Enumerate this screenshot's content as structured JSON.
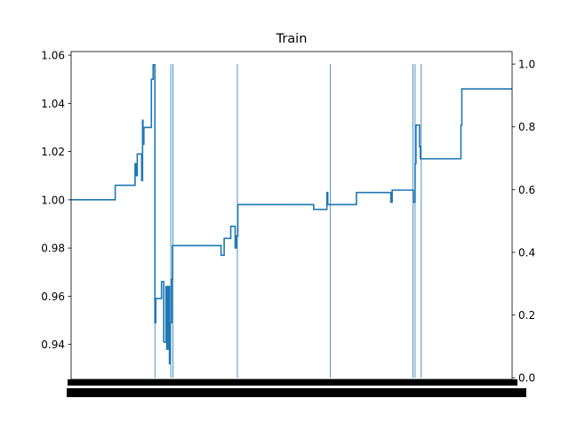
{
  "chart_data": {
    "type": "line",
    "title": "Train",
    "xlabel": "",
    "ylabel": "",
    "line_color": "#1f77b4",
    "grid": false,
    "legend": "none",
    "x_tick_labels_overlapping": true,
    "xlim": [
      0,
      1000
    ],
    "ylim_left": [
      0.9255,
      1.0615
    ],
    "ylim_right": [
      -0.005,
      1.04
    ],
    "y_ticks_left": [
      0.94,
      0.96,
      0.98,
      1.0,
      1.02,
      1.04,
      1.06
    ],
    "y_ticks_left_labels": [
      "0.94",
      "0.96",
      "0.98",
      "1.00",
      "1.02",
      "1.04",
      "1.06"
    ],
    "y_ticks_right": [
      0.0,
      0.2,
      0.4,
      0.6,
      0.8,
      1.0
    ],
    "y_ticks_right_labels": [
      "0.0",
      "0.2",
      "0.4",
      "0.6",
      "0.8",
      "1.0"
    ],
    "series": [
      {
        "axis": "left",
        "step": true,
        "points": [
          [
            0,
            1.0
          ],
          [
            100,
            1.0
          ],
          [
            100,
            1.006
          ],
          [
            145,
            1.006
          ],
          [
            145,
            1.015
          ],
          [
            148,
            1.015
          ],
          [
            148,
            1.01
          ],
          [
            150,
            1.01
          ],
          [
            150,
            1.019
          ],
          [
            160,
            1.019
          ],
          [
            160,
            1.008
          ],
          [
            162,
            1.008
          ],
          [
            162,
            1.033
          ],
          [
            163,
            1.033
          ],
          [
            163,
            1.023
          ],
          [
            165,
            1.023
          ],
          [
            165,
            1.03
          ],
          [
            182,
            1.03
          ],
          [
            182,
            1.05
          ],
          [
            186,
            1.05
          ],
          [
            186,
            1.056
          ],
          [
            190,
            1.056
          ],
          [
            190,
            0.949
          ],
          [
            192,
            0.949
          ],
          [
            192,
            0.959
          ],
          [
            205,
            0.959
          ],
          [
            205,
            0.966
          ],
          [
            210,
            0.966
          ],
          [
            210,
            0.941
          ],
          [
            215,
            0.941
          ],
          [
            215,
            0.964
          ],
          [
            217,
            0.964
          ],
          [
            217,
            0.938
          ],
          [
            220,
            0.938
          ],
          [
            220,
            0.964
          ],
          [
            223,
            0.964
          ],
          [
            223,
            0.932
          ],
          [
            225,
            0.932
          ],
          [
            225,
            0.949
          ],
          [
            228,
            0.949
          ],
          [
            228,
            0.967
          ],
          [
            230,
            0.967
          ],
          [
            230,
            0.981
          ],
          [
            340,
            0.981
          ],
          [
            340,
            0.977
          ],
          [
            347,
            0.977
          ],
          [
            347,
            0.984
          ],
          [
            362,
            0.984
          ],
          [
            362,
            0.989
          ],
          [
            372,
            0.989
          ],
          [
            372,
            0.98
          ],
          [
            375,
            0.98
          ],
          [
            375,
            0.985
          ],
          [
            378,
            0.985
          ],
          [
            378,
            0.998
          ],
          [
            550,
            0.998
          ],
          [
            550,
            0.996
          ],
          [
            580,
            0.996
          ],
          [
            580,
            1.003
          ],
          [
            582,
            1.003
          ],
          [
            582,
            0.998
          ],
          [
            647,
            0.998
          ],
          [
            647,
            1.003
          ],
          [
            725,
            1.003
          ],
          [
            725,
            0.999
          ],
          [
            728,
            0.999
          ],
          [
            728,
            1.004
          ],
          [
            776,
            1.004
          ],
          [
            776,
            0.999
          ],
          [
            780,
            0.999
          ],
          [
            780,
            1.015
          ],
          [
            782,
            1.015
          ],
          [
            782,
            1.031
          ],
          [
            790,
            1.031
          ],
          [
            790,
            1.022
          ],
          [
            792,
            1.022
          ],
          [
            792,
            1.017
          ],
          [
            884,
            1.017
          ],
          [
            884,
            1.031
          ],
          [
            886,
            1.031
          ],
          [
            886,
            1.046
          ],
          [
            1000,
            1.046
          ]
        ]
      }
    ],
    "vertical_lines_right_axis": [
      {
        "x": 190,
        "y0": 0.0,
        "y1": 1.0
      },
      {
        "x": 226,
        "y0": 0.0,
        "y1": 1.0
      },
      {
        "x": 231,
        "y0": 0.0,
        "y1": 1.0
      },
      {
        "x": 377,
        "y0": 0.0,
        "y1": 1.0
      },
      {
        "x": 588,
        "y0": 0.0,
        "y1": 1.0
      },
      {
        "x": 775,
        "y0": 0.0,
        "y1": 1.0
      },
      {
        "x": 780,
        "y0": 0.0,
        "y1": 1.0
      },
      {
        "x": 794,
        "y0": 0.0,
        "y1": 1.0
      }
    ]
  }
}
